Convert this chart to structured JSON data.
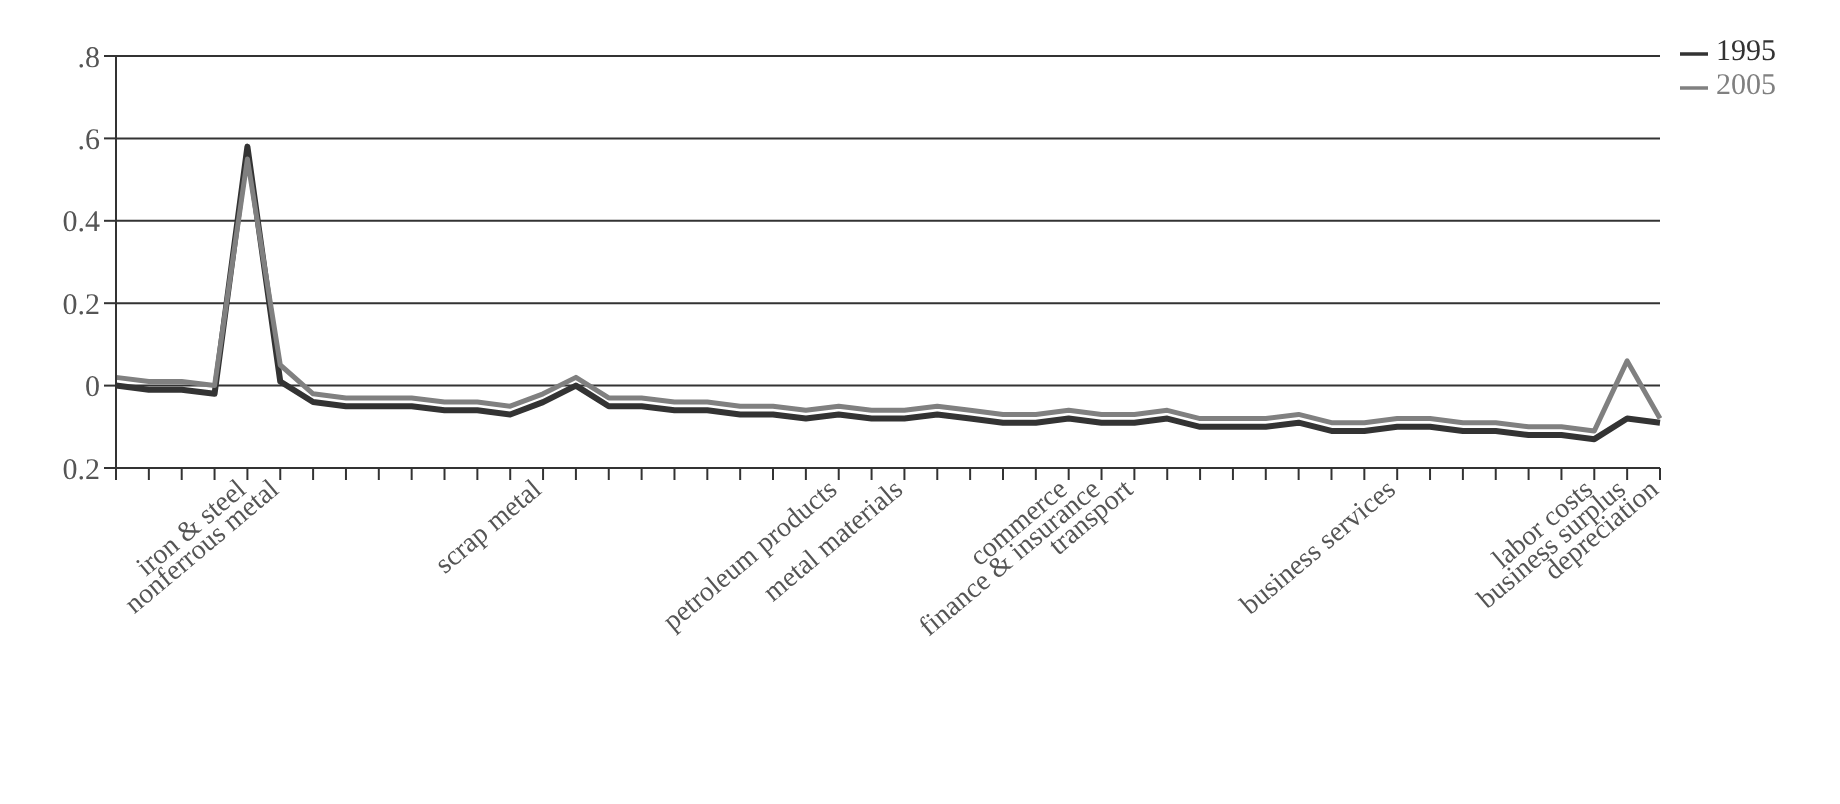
{
  "chart_data": {
    "type": "line",
    "categories": [
      null,
      null,
      null,
      null,
      "iron & steel",
      "nonferrous metal",
      null,
      null,
      null,
      null,
      null,
      null,
      null,
      "scrap metal",
      null,
      null,
      null,
      null,
      null,
      null,
      null,
      null,
      "petroleum products",
      null,
      "metal materials",
      null,
      null,
      null,
      null,
      "commerce",
      "finance & insurance",
      "transport",
      null,
      null,
      null,
      null,
      null,
      null,
      null,
      "business services",
      null,
      null,
      null,
      null,
      null,
      "labor costs",
      "business surplus",
      "depreciation"
    ],
    "series": [
      {
        "name": "1995",
        "color": "#333333",
        "values": [
          0,
          -0.01,
          -0.01,
          -0.02,
          0.58,
          0.01,
          -0.04,
          -0.05,
          -0.05,
          -0.05,
          -0.06,
          -0.06,
          -0.07,
          -0.04,
          0,
          -0.05,
          -0.05,
          -0.06,
          -0.06,
          -0.07,
          -0.07,
          -0.08,
          -0.07,
          -0.08,
          -0.08,
          -0.07,
          -0.08,
          -0.09,
          -0.09,
          -0.08,
          -0.09,
          -0.09,
          -0.08,
          -0.1,
          -0.1,
          -0.1,
          -0.09,
          -0.11,
          -0.11,
          -0.1,
          -0.1,
          -0.11,
          -0.11,
          -0.12,
          -0.12,
          -0.13,
          -0.08,
          -0.09
        ]
      },
      {
        "name": "2005",
        "color": "#808080",
        "values": [
          0.02,
          0.01,
          0.01,
          0,
          0.55,
          0.05,
          -0.02,
          -0.03,
          -0.03,
          -0.03,
          -0.04,
          -0.04,
          -0.05,
          -0.02,
          0.02,
          -0.03,
          -0.03,
          -0.04,
          -0.04,
          -0.05,
          -0.05,
          -0.06,
          -0.05,
          -0.06,
          -0.06,
          -0.05,
          -0.06,
          -0.07,
          -0.07,
          -0.06,
          -0.07,
          -0.07,
          -0.06,
          -0.08,
          -0.08,
          -0.08,
          -0.07,
          -0.09,
          -0.09,
          -0.08,
          -0.08,
          -0.09,
          -0.09,
          -0.1,
          -0.1,
          -0.11,
          0.06,
          -0.08
        ]
      }
    ],
    "ylim": [
      -0.2,
      0.8
    ],
    "yticks": [
      {
        "value": -0.2,
        "label": "0.2"
      },
      0,
      {
        "value": 0.2,
        "label": "0.2"
      },
      {
        "value": 0.4,
        "label": "0.4"
      },
      {
        "value": 0.6,
        "label": ".6"
      },
      {
        "value": 0.8,
        "label": ".8"
      }
    ],
    "grid": "y",
    "legend": "top right",
    "marker": "none",
    "line_style": "solid"
  }
}
